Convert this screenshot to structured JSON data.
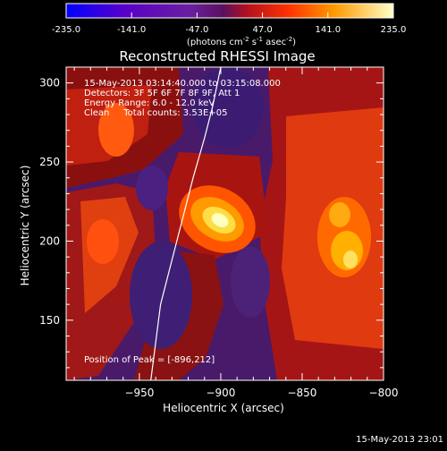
{
  "colorbar": {
    "ticks": [
      "-235.0",
      "-141.0",
      "-47.0",
      "47.0",
      "141.0",
      "235.0"
    ],
    "unit_parts": {
      "pre": "(photons cm",
      "exp1": "-2",
      "mid": " s",
      "exp2": "-1",
      "post": " asec",
      "exp3": "-2",
      "end": ")"
    },
    "range": [
      -235.0,
      235.0
    ]
  },
  "chart_data": {
    "type": "heatmap",
    "title": "Reconstructed RHESSI Image",
    "xlabel": "Heliocentric X (arcsec)",
    "ylabel": "Heliocentric Y (arcsec)",
    "xlim": [
      -995,
      -800
    ],
    "ylim": [
      112,
      310
    ],
    "x_ticks": [
      -950,
      -900,
      -850,
      -800
    ],
    "x_tick_labels": [
      "−950",
      "−900",
      "−850",
      "−800"
    ],
    "y_ticks": [
      150,
      200,
      250,
      300
    ],
    "y_tick_labels": [
      "150",
      "200",
      "250",
      "300"
    ],
    "limb": [
      [
        -943,
        112
      ],
      [
        -937,
        160
      ],
      [
        -927,
        200
      ],
      [
        -917,
        240
      ],
      [
        -910,
        265
      ],
      [
        -905,
        285
      ],
      [
        -900,
        310
      ]
    ],
    "peak": [
      -896,
      212
    ],
    "annotations": [
      "15-May-2013 03:14:40.000 to 03:15:08.000",
      "Detectors: 3F 5F 6F 7F 8F 9F, Att 1",
      "Energy Range: 6.0 - 12.0 keV",
      "Clean     Total counts: 3.53E+05"
    ],
    "peak_label": "Position of Peak = [-896,212]"
  },
  "footer": "15-May-2013 23:01"
}
